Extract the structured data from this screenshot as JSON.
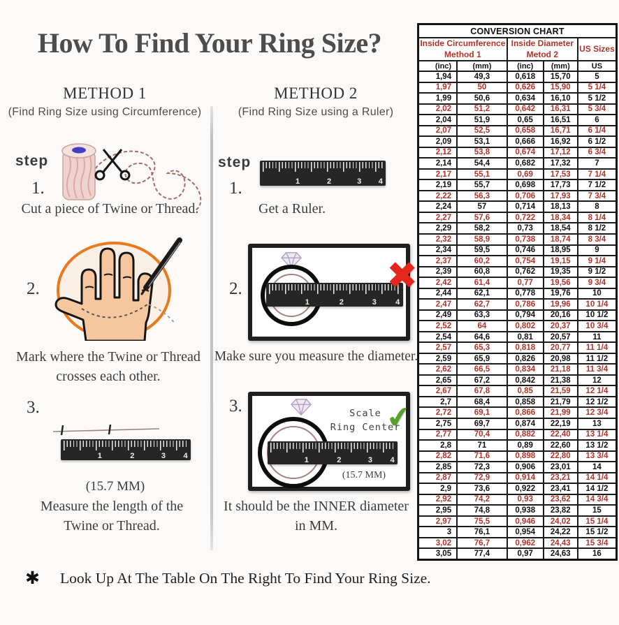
{
  "title": "How To Find Your Ring Size?",
  "methods": {
    "method1": {
      "heading": "METHOD 1",
      "subheading": "(Find Ring Size using Circumference)",
      "step_label": "step",
      "step1": {
        "num": "1.",
        "caption": "Cut a piece of  Twine or Thread."
      },
      "step2": {
        "num": "2.",
        "caption_line1": "Mark where the Twine or Thread",
        "caption_line2": "crosses each other."
      },
      "step3": {
        "num": "3.",
        "measurement": "(15.7 MM)",
        "caption_line1": "Measure the length of the",
        "caption_line2": "Twine or Thread."
      }
    },
    "method2": {
      "heading": "METHOD 2",
      "subheading": "(Find Ring Size using a Ruler)",
      "step_label": "step",
      "step1": {
        "num": "1.",
        "caption": "Get a Ruler."
      },
      "step2": {
        "num": "2.",
        "caption": "Make sure you measure the diameter."
      },
      "step3": {
        "num": "3.",
        "scale_line1": "Scale",
        "scale_line2": "Ring Center",
        "measurement": "(15.7 MM)",
        "caption_line1": "It should be the INNER diameter",
        "caption_line2": "in MM."
      }
    }
  },
  "ruler": {
    "numbers": [
      "1",
      "2",
      "3",
      "4"
    ]
  },
  "icons": {
    "check": "✔",
    "cross": "✖",
    "bullet": "✱"
  },
  "footer": {
    "text": "Look Up At The Table On The Right To Find Your Ring Size."
  },
  "conversion_chart": {
    "title": "CONVERSION CHART",
    "group_headers": [
      {
        "line1": "Inside Circumference",
        "line2": "Method 1"
      },
      {
        "line1": "Inside Diameter",
        "line2": "Metod 2"
      },
      {
        "line1": "US Sizes",
        "line2": ""
      }
    ],
    "unit_headers": [
      "(inc)",
      "(mm)",
      "(inc)",
      "(mm)",
      "US"
    ],
    "rows": [
      [
        "1,94",
        "49,3",
        "0,618",
        "15,70",
        "5"
      ],
      [
        "1,97",
        "50",
        "0,626",
        "15,90",
        "5 1/4"
      ],
      [
        "1,99",
        "50,6",
        "0,634",
        "16,10",
        "5 1/2"
      ],
      [
        "2,02",
        "51,2",
        "0,642",
        "16,31",
        "5 3/4"
      ],
      [
        "2,04",
        "51,9",
        "0,65",
        "16,51",
        "6"
      ],
      [
        "2,07",
        "52,5",
        "0,658",
        "16,71",
        "6 1/4"
      ],
      [
        "2,09",
        "53,1",
        "0,666",
        "16,92",
        "6 1/2"
      ],
      [
        "2,12",
        "53,8",
        "0,674",
        "17,12",
        "6 3/4"
      ],
      [
        "2,14",
        "54,4",
        "0,682",
        "17,32",
        "7"
      ],
      [
        "2,17",
        "55,1",
        "0,69",
        "17,53",
        "7 1/4"
      ],
      [
        "2,19",
        "55,7",
        "0,698",
        "17,73",
        "7 1/2"
      ],
      [
        "2,22",
        "56,3",
        "0,706",
        "17,93",
        "7 3/4"
      ],
      [
        "2,24",
        "57",
        "0,714",
        "18,13",
        "8"
      ],
      [
        "2,27",
        "57,6",
        "0,722",
        "18,34",
        "8 1/4"
      ],
      [
        "2,29",
        "58,2",
        "0,73",
        "18,54",
        "8 1/2"
      ],
      [
        "2,32",
        "58,9",
        "0,738",
        "18,74",
        "8 3/4"
      ],
      [
        "2,34",
        "59,5",
        "0,746",
        "18,95",
        "9"
      ],
      [
        "2,37",
        "60,2",
        "0,754",
        "19,15",
        "9 1/4"
      ],
      [
        "2,39",
        "60,8",
        "0,762",
        "19,35",
        "9 1/2"
      ],
      [
        "2,42",
        "61,4",
        "0,77",
        "19,56",
        "9 3/4"
      ],
      [
        "2,44",
        "62,1",
        "0,778",
        "19,76",
        "10"
      ],
      [
        "2,47",
        "62,7",
        "0,786",
        "19,96",
        "10 1/4"
      ],
      [
        "2,49",
        "63,3",
        "0,794",
        "20,16",
        "10 1/2"
      ],
      [
        "2,52",
        "64",
        "0,802",
        "20,37",
        "10 3/4"
      ],
      [
        "2,54",
        "64,6",
        "0,81",
        "20,57",
        "11"
      ],
      [
        "2,57",
        "65,3",
        "0,818",
        "20,77",
        "11 1/4"
      ],
      [
        "2,59",
        "65,9",
        "0,826",
        "20,98",
        "11 1/2"
      ],
      [
        "2,62",
        "66,5",
        "0,834",
        "21,18",
        "11 3/4"
      ],
      [
        "2,65",
        "67,2",
        "0,842",
        "21,38",
        "12"
      ],
      [
        "2,67",
        "67,8",
        "0,85",
        "21,59",
        "12 1/4"
      ],
      [
        "2,7",
        "68,4",
        "0,858",
        "21,79",
        "12 1/2"
      ],
      [
        "2,72",
        "69,1",
        "0,866",
        "21,99",
        "12 3/4"
      ],
      [
        "2,75",
        "69,7",
        "0,874",
        "22,19",
        "13"
      ],
      [
        "2,77",
        "70,4",
        "0,882",
        "22,40",
        "13 1/4"
      ],
      [
        "2,8",
        "71",
        "0,89",
        "22,60",
        "13 1/2"
      ],
      [
        "2,82",
        "71,6",
        "0,898",
        "22,80",
        "13 3/4"
      ],
      [
        "2,85",
        "72,3",
        "0,906",
        "23,01",
        "14"
      ],
      [
        "2,87",
        "72,9",
        "0,914",
        "23,21",
        "14 1/4"
      ],
      [
        "2,9",
        "73,6",
        "0,922",
        "23,41",
        "14 1/2"
      ],
      [
        "2,92",
        "74,2",
        "0,93",
        "23,62",
        "14 3/4"
      ],
      [
        "2,95",
        "74,8",
        "0,938",
        "23,82",
        "15"
      ],
      [
        "2,97",
        "75,5",
        "0,946",
        "24,02",
        "15 1/4"
      ],
      [
        "3",
        "76,1",
        "0,954",
        "24,22",
        "15 1/2"
      ],
      [
        "3,02",
        "76,7",
        "0,962",
        "24,43",
        "15 3/4"
      ],
      [
        "3,05",
        "77,4",
        "0,97",
        "24,63",
        "16"
      ]
    ]
  },
  "colors": {
    "accent_red": "#b2342a",
    "cross_red": "#e4261c",
    "check_green": "#55a32a",
    "circle_orange": "#e8791c",
    "hand_skin": "#f6c79f"
  }
}
